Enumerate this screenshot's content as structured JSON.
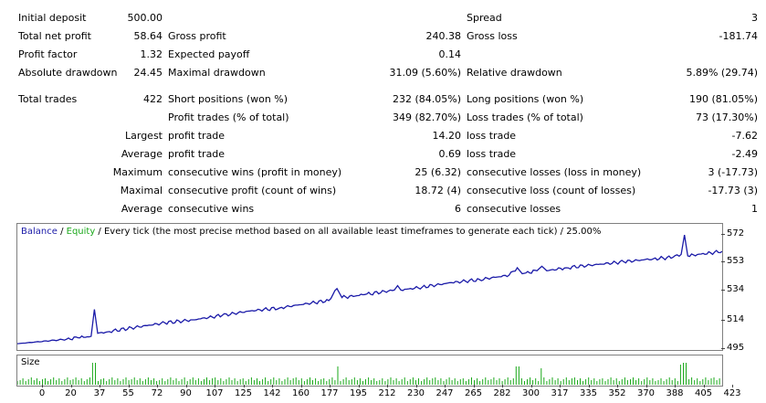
{
  "stats": {
    "initial_deposit": {
      "label": "Initial deposit",
      "value": "500.00"
    },
    "spread": {
      "label": "Spread",
      "value": "3"
    },
    "total_net_profit": {
      "label": "Total net profit",
      "value": "58.64"
    },
    "gross_profit": {
      "label": "Gross profit",
      "value": "240.38"
    },
    "gross_loss": {
      "label": "Gross loss",
      "value": "-181.74"
    },
    "profit_factor": {
      "label": "Profit factor",
      "value": "1.32"
    },
    "expected_payoff": {
      "label": "Expected payoff",
      "value": "0.14"
    },
    "absolute_drawdown": {
      "label": "Absolute drawdown",
      "value": "24.45"
    },
    "maximal_drawdown": {
      "label": "Maximal drawdown",
      "value": "31.09 (5.60%)"
    },
    "relative_drawdown": {
      "label": "Relative drawdown",
      "value": "5.89% (29.74)"
    },
    "total_trades": {
      "label": "Total trades",
      "value": "422"
    },
    "short_positions": {
      "label": "Short positions (won %)",
      "value": "232 (84.05%)"
    },
    "long_positions": {
      "label": "Long positions (won %)",
      "value": "190 (81.05%)"
    },
    "profit_trades": {
      "label": "Profit trades (% of total)",
      "value": "349 (82.70%)"
    },
    "loss_trades": {
      "label": "Loss trades (% of total)",
      "value": "73 (17.30%)"
    },
    "largest": {
      "label": "Largest",
      "profit_label": "profit trade",
      "profit_value": "14.20",
      "loss_label": "loss trade",
      "loss_value": "-7.62"
    },
    "average": {
      "label": "Average",
      "profit_label": "profit trade",
      "profit_value": "0.69",
      "loss_label": "loss trade",
      "loss_value": "-2.49"
    },
    "maximum": {
      "label": "Maximum",
      "wins_label": "consecutive wins (profit in money)",
      "wins_value": "25 (6.32)",
      "losses_label": "consecutive losses (loss in money)",
      "losses_value": "3 (-17.73)"
    },
    "maximal": {
      "label": "Maximal",
      "profit_label": "consecutive profit (count of wins)",
      "profit_value": "18.72 (4)",
      "loss_label": "consecutive loss (count of losses)",
      "loss_value": "-17.73 (3)"
    },
    "average2": {
      "label": "Average",
      "wins_label": "consecutive wins",
      "wins_value": "6",
      "losses_label": "consecutive losses",
      "losses_value": "1"
    }
  },
  "chart": {
    "legend_balance": "Balance",
    "legend_sep": " / ",
    "legend_equity": "Equity",
    "legend_rest": " / Every tick (the most precise method based on all available least timeframes to generate each tick) / 25.00%",
    "size_label": "Size",
    "balance_color": "#1a1aa8",
    "equity_color": "#1aa81a"
  },
  "chart_data": {
    "type": "line",
    "x_ticks": [
      "0",
      "20",
      "37",
      "55",
      "72",
      "90",
      "107",
      "125",
      "142",
      "160",
      "177",
      "195",
      "212",
      "230",
      "247",
      "265",
      "282",
      "300",
      "317",
      "335",
      "352",
      "370",
      "388",
      "405",
      "423"
    ],
    "y_ticks": [
      "572",
      "553",
      "534",
      "514",
      "495"
    ],
    "ylim": [
      495,
      576
    ],
    "xlim": [
      0,
      430
    ],
    "series": [
      {
        "name": "Balance",
        "points": [
          [
            0,
            498
          ],
          [
            10,
            499
          ],
          [
            20,
            500
          ],
          [
            30,
            501
          ],
          [
            37,
            502
          ],
          [
            45,
            503
          ],
          [
            47,
            521
          ],
          [
            49,
            505
          ],
          [
            55,
            506
          ],
          [
            72,
            509
          ],
          [
            90,
            512
          ],
          [
            107,
            514
          ],
          [
            125,
            517
          ],
          [
            142,
            520
          ],
          [
            160,
            522
          ],
          [
            177,
            525
          ],
          [
            190,
            527
          ],
          [
            195,
            535
          ],
          [
            198,
            529
          ],
          [
            212,
            531
          ],
          [
            230,
            534
          ],
          [
            232,
            537
          ],
          [
            234,
            534
          ],
          [
            247,
            536
          ],
          [
            265,
            539
          ],
          [
            282,
            541
          ],
          [
            300,
            544
          ],
          [
            305,
            549
          ],
          [
            308,
            545
          ],
          [
            317,
            547
          ],
          [
            320,
            550
          ],
          [
            323,
            547
          ],
          [
            335,
            549
          ],
          [
            352,
            551
          ],
          [
            370,
            553
          ],
          [
            388,
            555
          ],
          [
            400,
            556
          ],
          [
            405,
            558
          ],
          [
            407,
            571
          ],
          [
            409,
            557
          ],
          [
            423,
            559
          ],
          [
            430,
            560
          ]
        ]
      }
    ]
  }
}
